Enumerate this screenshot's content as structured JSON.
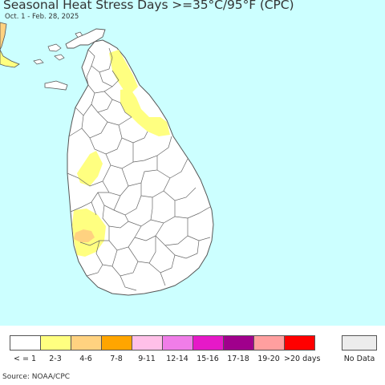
{
  "title": "Seasonal Heat Stress Days >=35°C/95°F (CPC)",
  "subtitle": "Oct. 1 - Feb. 28, 2025",
  "source": "Source: NOAA/CPC",
  "colors": {
    "ocean": "#ccffff",
    "land": "#ffffff",
    "border": "#555555"
  },
  "legend": [
    {
      "label": "< = 1",
      "color": "#ffffff"
    },
    {
      "label": "2-3",
      "color": "#ffff80"
    },
    {
      "label": "4-6",
      "color": "#ffd280"
    },
    {
      "label": "7-8",
      "color": "#ffa500"
    },
    {
      "label": "9-11",
      "color": "#ffc0e8"
    },
    {
      "label": "12-14",
      "color": "#f07de8"
    },
    {
      "label": "15-16",
      "color": "#e619c8"
    },
    {
      "label": "17-18",
      "color": "#a0008c"
    },
    {
      "label": "19-20",
      "color": "#ff9f9f"
    },
    {
      "label": ">20 days",
      "color": "#ff0000"
    }
  ],
  "no_data": {
    "label": "No Data",
    "color": "#ececec"
  }
}
